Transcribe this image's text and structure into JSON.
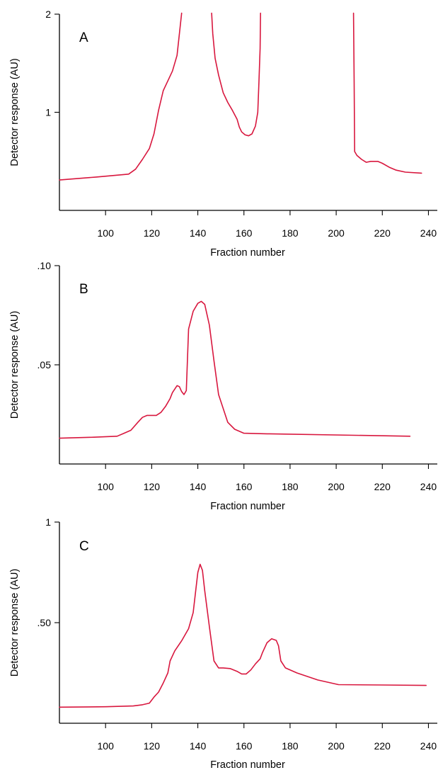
{
  "chart_data": [
    {
      "type": "line",
      "panel_label": "A",
      "xlabel": "Fraction number",
      "ylabel": "Detector response (AU)",
      "xlim": [
        80,
        242
      ],
      "ylim": [
        0,
        2
      ],
      "x_ticks": [
        100,
        120,
        140,
        160,
        180,
        200,
        220,
        240
      ],
      "x_tick_labels": [
        "100",
        "120",
        "140",
        "160",
        "180",
        "200",
        "220",
        "240"
      ],
      "y_ticks": [
        1,
        2
      ],
      "y_tick_labels": [
        "1",
        "2"
      ],
      "color": "#d8173e",
      "series": [
        {
          "segments": [
            [
              [
                80,
                0.31
              ],
              [
                96,
                0.34
              ],
              [
                110,
                0.37
              ],
              [
                113,
                0.42
              ],
              [
                116,
                0.52
              ],
              [
                119,
                0.63
              ],
              [
                121,
                0.78
              ],
              [
                123,
                1.02
              ],
              [
                125,
                1.22
              ],
              [
                127,
                1.32
              ],
              [
                129,
                1.42
              ],
              [
                131,
                1.58
              ],
              [
                133,
                2.01
              ]
            ],
            [
              [
                146,
                2.01
              ],
              [
                146.5,
                1.8
              ],
              [
                147.5,
                1.55
              ],
              [
                149,
                1.38
              ],
              [
                151,
                1.2
              ],
              [
                153,
                1.1
              ],
              [
                155,
                1.02
              ],
              [
                157,
                0.93
              ],
              [
                158,
                0.85
              ],
              [
                159,
                0.8
              ],
              [
                160.5,
                0.77
              ],
              [
                162,
                0.76
              ],
              [
                163.5,
                0.78
              ],
              [
                165,
                0.86
              ],
              [
                166,
                1.0
              ],
              [
                166.5,
                1.3
              ],
              [
                167,
                1.65
              ],
              [
                167.2,
                2.01
              ]
            ],
            [
              [
                207.5,
                2.01
              ],
              [
                207.8,
                1.3
              ],
              [
                208,
                0.6
              ],
              [
                209,
                0.56
              ],
              [
                211,
                0.52
              ],
              [
                213,
                0.49
              ],
              [
                215,
                0.5
              ],
              [
                218,
                0.5
              ],
              [
                220,
                0.48
              ],
              [
                223,
                0.44
              ],
              [
                226,
                0.41
              ],
              [
                230,
                0.39
              ],
              [
                237,
                0.38
              ]
            ]
          ]
        }
      ]
    },
    {
      "type": "line",
      "panel_label": "B",
      "xlabel": "Fraction number",
      "ylabel": "Detector response (AU)",
      "xlim": [
        80,
        242
      ],
      "ylim": [
        0,
        0.1
      ],
      "x_ticks": [
        100,
        120,
        140,
        160,
        180,
        200,
        220,
        240
      ],
      "x_tick_labels": [
        "100",
        "120",
        "140",
        "160",
        "180",
        "200",
        "220",
        "240"
      ],
      "y_ticks": [
        0.05,
        0.1
      ],
      "y_tick_labels": [
        ".05",
        ".10"
      ],
      "color": "#d8173e",
      "series": [
        {
          "segments": [
            [
              [
                80,
                0.013
              ],
              [
                95,
                0.0135
              ],
              [
                105,
                0.014
              ],
              [
                108,
                0.0155
              ],
              [
                111,
                0.017
              ],
              [
                114,
                0.021
              ],
              [
                116,
                0.0235
              ],
              [
                118,
                0.0245
              ],
              [
                120,
                0.0245
              ],
              [
                122,
                0.0245
              ],
              [
                124,
                0.026
              ],
              [
                126,
                0.029
              ],
              [
                128,
                0.033
              ],
              [
                129,
                0.036
              ],
              [
                131,
                0.0395
              ],
              [
                132,
                0.039
              ],
              [
                133,
                0.0365
              ],
              [
                134,
                0.035
              ],
              [
                135,
                0.037
              ],
              [
                136,
                0.068
              ],
              [
                138,
                0.077
              ],
              [
                140,
                0.081
              ],
              [
                141.5,
                0.082
              ],
              [
                143,
                0.0805
              ],
              [
                145,
                0.07
              ],
              [
                147,
                0.052
              ],
              [
                149,
                0.035
              ],
              [
                151,
                0.028
              ],
              [
                153,
                0.021
              ],
              [
                156,
                0.0175
              ],
              [
                160,
                0.0155
              ],
              [
                170,
                0.0152
              ],
              [
                232,
                0.014
              ]
            ]
          ]
        }
      ]
    },
    {
      "type": "line",
      "panel_label": "C",
      "xlabel": "Fraction number",
      "ylabel": "Detector response (AU)",
      "xlim": [
        80,
        242
      ],
      "ylim": [
        0,
        1
      ],
      "x_ticks": [
        100,
        120,
        140,
        160,
        180,
        200,
        220,
        240
      ],
      "x_tick_labels": [
        "100",
        "120",
        "140",
        "160",
        "180",
        "200",
        "220",
        "240"
      ],
      "y_ticks": [
        0.5,
        1
      ],
      "y_tick_labels": [
        ".50",
        "1"
      ],
      "color": "#d8173e",
      "series": [
        {
          "segments": [
            [
              [
                80,
                0.08
              ],
              [
                100,
                0.082
              ],
              [
                112,
                0.086
              ],
              [
                116,
                0.092
              ],
              [
                119,
                0.1
              ],
              [
                121,
                0.13
              ],
              [
                123,
                0.155
              ],
              [
                125,
                0.2
              ],
              [
                127,
                0.25
              ],
              [
                128,
                0.31
              ],
              [
                130,
                0.36
              ],
              [
                133,
                0.41
              ],
              [
                136,
                0.47
              ],
              [
                138,
                0.55
              ],
              [
                139,
                0.65
              ],
              [
                140,
                0.75
              ],
              [
                141,
                0.79
              ],
              [
                142,
                0.76
              ],
              [
                143,
                0.66
              ],
              [
                145,
                0.48
              ],
              [
                147,
                0.31
              ],
              [
                149,
                0.275
              ],
              [
                151,
                0.275
              ],
              [
                154,
                0.272
              ],
              [
                157,
                0.258
              ],
              [
                159,
                0.245
              ],
              [
                161,
                0.245
              ],
              [
                163,
                0.265
              ],
              [
                165,
                0.295
              ],
              [
                167,
                0.32
              ],
              [
                168,
                0.35
              ],
              [
                170,
                0.4
              ],
              [
                172,
                0.42
              ],
              [
                174,
                0.412
              ],
              [
                175,
                0.385
              ],
              [
                176,
                0.31
              ],
              [
                178,
                0.275
              ],
              [
                183,
                0.25
              ],
              [
                192,
                0.215
              ],
              [
                201,
                0.192
              ],
              [
                220,
                0.19
              ],
              [
                239,
                0.188
              ]
            ]
          ]
        }
      ]
    }
  ]
}
